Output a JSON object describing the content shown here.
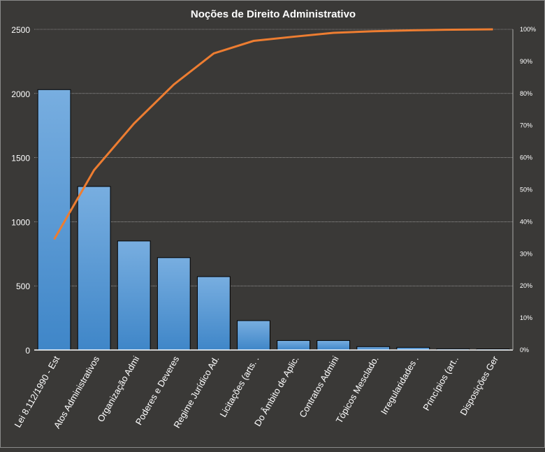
{
  "chart_data": {
    "type": "bar",
    "title": "Noções de Direito  Administrativo",
    "categories": [
      "Lei 8.112/1990 - Est",
      "Atos Administrativos",
      "Organização Admi",
      "Poderes e Deveres",
      "Regime Jurídico Ad.",
      "Licitações (arts. .",
      "Do Âmbito de Aplic.",
      "Contratos Admini",
      "Tópicos Mesclado.",
      "Irregularidades  .",
      "Princípios (art..",
      "Disposições Ger"
    ],
    "series": [
      {
        "type": "bar",
        "values": [
          2030,
          1275,
          850,
          720,
          572,
          229,
          74,
          74,
          26,
          20,
          9,
          8
        ],
        "color": "#5b9bd5"
      },
      {
        "type": "line",
        "axis": "secondary",
        "values": [
          34.5,
          56.1,
          70.6,
          82.8,
          92.5,
          96.4,
          97.7,
          98.9,
          99.4,
          99.7,
          99.9,
          100
        ],
        "color": "#ed7d31"
      }
    ],
    "ylim": [
      0,
      2500
    ],
    "yticks": [
      "0",
      "500",
      "1000",
      "1500",
      "2000",
      "2500"
    ],
    "y2lim": [
      0,
      100
    ],
    "y2ticks": [
      "0%",
      "10%",
      "20%",
      "30%",
      "40%",
      "50%",
      "60%",
      "70%",
      "80%",
      "90%",
      "100%"
    ],
    "grid": true,
    "legend": "none",
    "background": "#3a3937"
  }
}
